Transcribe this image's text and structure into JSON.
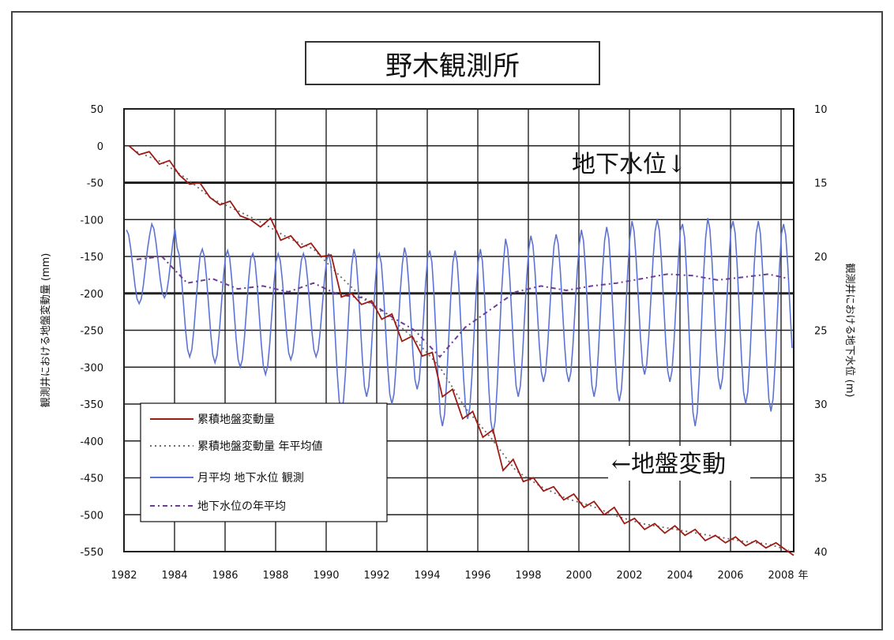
{
  "title": "野木観測所",
  "chart_data": {
    "type": "line",
    "title": "野木観測所",
    "ylabel_left": "観測井における地盤変動量 (mm)",
    "ylabel_right": "観測井における地下水位 (m)",
    "x_unit": "年",
    "x_ticks": [
      "1982",
      "1984",
      "1986",
      "1988",
      "1990",
      "1992",
      "1994",
      "1996",
      "1998",
      "2000",
      "2002",
      "2004",
      "2006",
      "2008"
    ],
    "y_left_ticks": [
      "50",
      "0",
      "-50",
      "-100",
      "-150",
      "-200",
      "-250",
      "-300",
      "-350",
      "-400",
      "-450",
      "-500",
      "-550"
    ],
    "y_right_ticks": [
      "10",
      "15",
      "20",
      "25",
      "30",
      "35",
      "40"
    ],
    "ylim_left": [
      -550,
      50
    ],
    "ylim_right": [
      40,
      10
    ],
    "xlim": [
      1982,
      2008.5
    ],
    "grid": true,
    "legend_position": "bottom-left",
    "annotations": [
      {
        "text": "地下水位↓"
      },
      {
        "text": "←地盤変動"
      }
    ],
    "series": [
      {
        "name": "累積地盤変動量",
        "axis": "left",
        "color": "#9e1b14",
        "style": "solid",
        "x": [
          1982.2,
          1982.6,
          1983.0,
          1983.4,
          1983.8,
          1984.2,
          1984.6,
          1985.0,
          1985.4,
          1985.8,
          1986.2,
          1986.6,
          1987.0,
          1987.4,
          1987.8,
          1988.2,
          1988.6,
          1989.0,
          1989.4,
          1989.8,
          1990.2,
          1990.6,
          1991.0,
          1991.4,
          1991.8,
          1992.2,
          1992.6,
          1993.0,
          1993.4,
          1993.8,
          1994.2,
          1994.6,
          1995.0,
          1995.4,
          1995.8,
          1996.2,
          1996.6,
          1997.0,
          1997.4,
          1997.8,
          1998.2,
          1998.6,
          1999.0,
          1999.4,
          1999.8,
          2000.2,
          2000.6,
          2001.0,
          2001.4,
          2001.8,
          2002.2,
          2002.6,
          2003.0,
          2003.4,
          2003.8,
          2004.2,
          2004.6,
          2005.0,
          2005.4,
          2005.8,
          2006.2,
          2006.6,
          2007.0,
          2007.4,
          2007.8,
          2008.2,
          2008.5
        ],
        "y": [
          0,
          -12,
          -8,
          -25,
          -20,
          -40,
          -52,
          -50,
          -70,
          -80,
          -75,
          -95,
          -100,
          -110,
          -98,
          -128,
          -122,
          -138,
          -132,
          -150,
          -148,
          -205,
          -200,
          -215,
          -210,
          -235,
          -228,
          -265,
          -258,
          -285,
          -280,
          -340,
          -330,
          -370,
          -360,
          -395,
          -385,
          -440,
          -425,
          -455,
          -450,
          -468,
          -462,
          -480,
          -472,
          -490,
          -482,
          -500,
          -490,
          -512,
          -505,
          -520,
          -512,
          -525,
          -515,
          -528,
          -520,
          -535,
          -528,
          -538,
          -530,
          -542,
          -535,
          -545,
          -538,
          -548,
          -555
        ]
      },
      {
        "name": "累積地盤変動量 年平均値",
        "axis": "left",
        "color": "#6a6a6a",
        "style": "dotted",
        "x": [
          1982.5,
          1983.5,
          1984.5,
          1985.5,
          1986.5,
          1987.5,
          1988.5,
          1989.5,
          1990.5,
          1991.5,
          1992.5,
          1993.5,
          1994.5,
          1995.5,
          1996.5,
          1997.5,
          1998.5,
          1999.5,
          2000.5,
          2001.5,
          2002.5,
          2003.5,
          2004.5,
          2005.5,
          2006.5,
          2007.5,
          2008.3
        ],
        "y": [
          -8,
          -22,
          -45,
          -72,
          -88,
          -105,
          -125,
          -140,
          -175,
          -208,
          -232,
          -262,
          -300,
          -355,
          -395,
          -440,
          -462,
          -478,
          -488,
          -502,
          -512,
          -518,
          -524,
          -530,
          -536,
          -540,
          -548
        ]
      },
      {
        "name": "月平均 地下水位 観測",
        "axis": "right",
        "color": "#5b73d6",
        "style": "solid",
        "x": [],
        "y": []
      },
      {
        "name": "地下水位の年平均",
        "axis": "right",
        "color": "#6d3c96",
        "style": "dashdot",
        "x": [
          1982.5,
          1983.5,
          1984.5,
          1985.5,
          1986.5,
          1987.5,
          1988.5,
          1989.5,
          1990.5,
          1991.5,
          1992.5,
          1993.5,
          1994.5,
          1995.5,
          1996.5,
          1997.5,
          1998.5,
          1999.5,
          2000.5,
          2001.5,
          2002.5,
          2003.5,
          2004.5,
          2005.5,
          2006.5,
          2007.5,
          2008.3
        ],
        "y": [
          20.2,
          20.0,
          21.8,
          21.5,
          22.2,
          22.0,
          22.4,
          21.8,
          22.6,
          22.8,
          24.0,
          25.0,
          26.8,
          24.8,
          23.6,
          22.4,
          22.0,
          22.3,
          22.0,
          21.8,
          21.5,
          21.2,
          21.3,
          21.6,
          21.4,
          21.2,
          21.5
        ]
      }
    ],
    "gw_monthly": {
      "years": [
        1982,
        1983,
        1984,
        1985,
        1986,
        1987,
        1988,
        1989,
        1990,
        1991,
        1992,
        1993,
        1994,
        1995,
        1996,
        1997,
        1998,
        1999,
        2000,
        2001,
        2002,
        2003,
        2004,
        2005,
        2006,
        2007,
        2008
      ],
      "high_m": [
        18.2,
        17.8,
        19.4,
        19.5,
        19.6,
        19.8,
        19.8,
        19.8,
        19.8,
        19.5,
        19.8,
        19.4,
        19.6,
        19.6,
        19.5,
        18.8,
        18.6,
        18.5,
        18.2,
        18.0,
        17.6,
        17.5,
        17.8,
        17.4,
        17.6,
        17.6,
        17.8
      ],
      "low_m": [
        23.2,
        22.8,
        26.8,
        27.2,
        27.5,
        28.0,
        27.0,
        26.8,
        30.5,
        29.5,
        30.0,
        29.0,
        31.5,
        31.0,
        32.0,
        29.5,
        28.5,
        28.5,
        29.5,
        29.8,
        28.0,
        28.5,
        31.5,
        29.0,
        30.0,
        30.5,
        29.0
      ]
    }
  },
  "legend": {
    "items": [
      {
        "label": "累積地盤変動量",
        "color": "#9e1b14",
        "style": "solid"
      },
      {
        "label": "累積地盤変動量 年平均値",
        "color": "#6a6a6a",
        "style": "dotted"
      },
      {
        "label": "月平均 地下水位 観測",
        "color": "#5b73d6",
        "style": "solid"
      },
      {
        "label": "地下水位の年平均",
        "color": "#6d3c96",
        "style": "dashdot"
      }
    ]
  }
}
